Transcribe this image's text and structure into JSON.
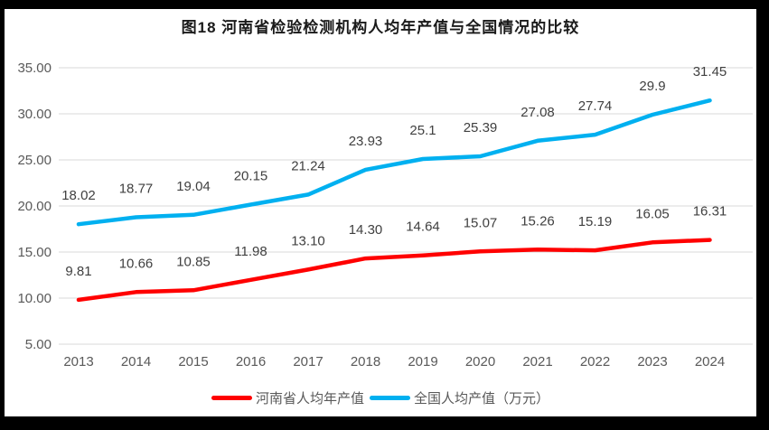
{
  "chart_data": {
    "type": "line",
    "title": "图18  河南省检验检测机构人均年产值与全国情况的比较",
    "categories": [
      "2013",
      "2014",
      "2015",
      "2016",
      "2017",
      "2018",
      "2019",
      "2020",
      "2021",
      "2022",
      "2023",
      "2024"
    ],
    "series": [
      {
        "name": "河南省人均年产值",
        "color": "#FF0000",
        "values": [
          9.81,
          10.66,
          10.85,
          11.98,
          13.1,
          14.3,
          14.64,
          15.07,
          15.26,
          15.19,
          16.05,
          16.31
        ],
        "labels": [
          "9.81",
          "10.66",
          "10.85",
          "11.98",
          "13.10",
          "14.30",
          "14.64",
          "15.07",
          "15.26",
          "15.19",
          "16.05",
          "16.31"
        ]
      },
      {
        "name": "全国人均产值（万元）",
        "color": "#00B0F0",
        "values": [
          18.02,
          18.77,
          19.04,
          20.15,
          21.24,
          23.93,
          25.1,
          25.39,
          27.08,
          27.74,
          29.9,
          31.45
        ],
        "labels": [
          "18.02",
          "18.77",
          "19.04",
          "20.15",
          "21.24",
          "23.93",
          "25.1",
          "25.39",
          "27.08",
          "27.74",
          "29.9",
          "31.45"
        ]
      }
    ],
    "ylim": [
      5,
      35
    ],
    "yticks": [
      "5.00",
      "10.00",
      "15.00",
      "20.00",
      "25.00",
      "30.00",
      "35.00"
    ],
    "grid": true,
    "legend_position": "bottom",
    "colors": {
      "gridline": "#D9D9D9",
      "axis_text": "#595959",
      "data_label_text": "#404040",
      "background": "#FFFFFF",
      "frame": "#000000"
    }
  }
}
